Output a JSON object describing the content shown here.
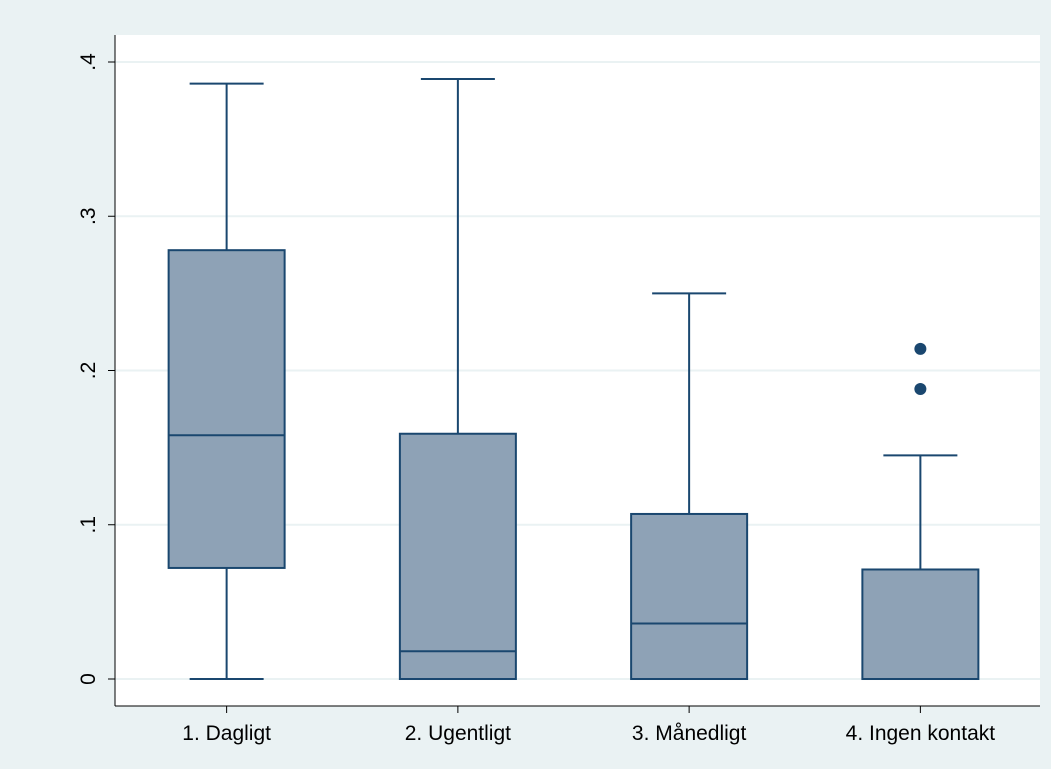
{
  "chart_data": {
    "type": "box",
    "categories": [
      "1. Dagligt",
      "2. Ugentligt",
      "3. Månedligt",
      "4. Ingen kontakt"
    ],
    "min": [
      0,
      0,
      0,
      0
    ],
    "q1": [
      0.072,
      0,
      0,
      0
    ],
    "median": [
      0.158,
      0.018,
      0.036,
      0
    ],
    "q3": [
      0.278,
      0.159,
      0.107,
      0.071
    ],
    "max": [
      0.386,
      0.389,
      0.25,
      0.145
    ],
    "outliers": [
      [],
      [],
      [],
      [
        0.214,
        0.188
      ]
    ],
    "color": "#8ea2b6",
    "line_color": "#1a476f",
    "ylim": [
      -0.0175,
      0.4175
    ],
    "yticks": [
      0,
      {
        "value": 0.1,
        "label": ".1"
      },
      {
        "value": 0.2,
        "label": ".2"
      },
      {
        "value": 0.3,
        "label": ".3"
      },
      {
        "value": 0.4,
        "label": ".4"
      }
    ],
    "grid": true
  }
}
